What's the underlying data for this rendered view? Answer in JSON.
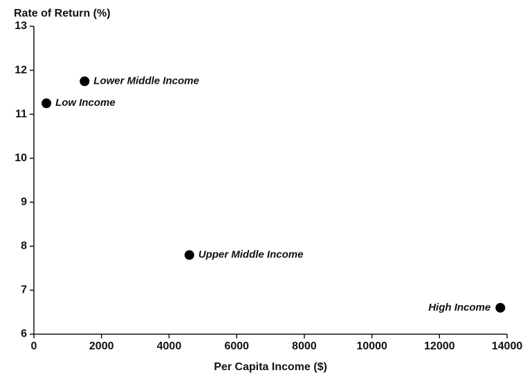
{
  "chart_data": {
    "type": "scatter",
    "y_label": "Rate of Return (%)",
    "x_label": "Per Capita Income ($)",
    "x": [
      370,
      1500,
      4600,
      13800
    ],
    "values": [
      11.25,
      11.75,
      7.8,
      6.6
    ],
    "point_labels": [
      "Low Income",
      "Lower Middle Income",
      "Upper Middle Income",
      "High Income"
    ],
    "color": "#000000",
    "xlim": [
      0,
      14000
    ],
    "xticks": [
      0,
      2000,
      4000,
      6000,
      8000,
      10000,
      12000,
      14000
    ],
    "ylim": [
      6,
      13
    ],
    "yticks": [
      6,
      7,
      8,
      9,
      10,
      11,
      12,
      13
    ],
    "grid": false
  }
}
